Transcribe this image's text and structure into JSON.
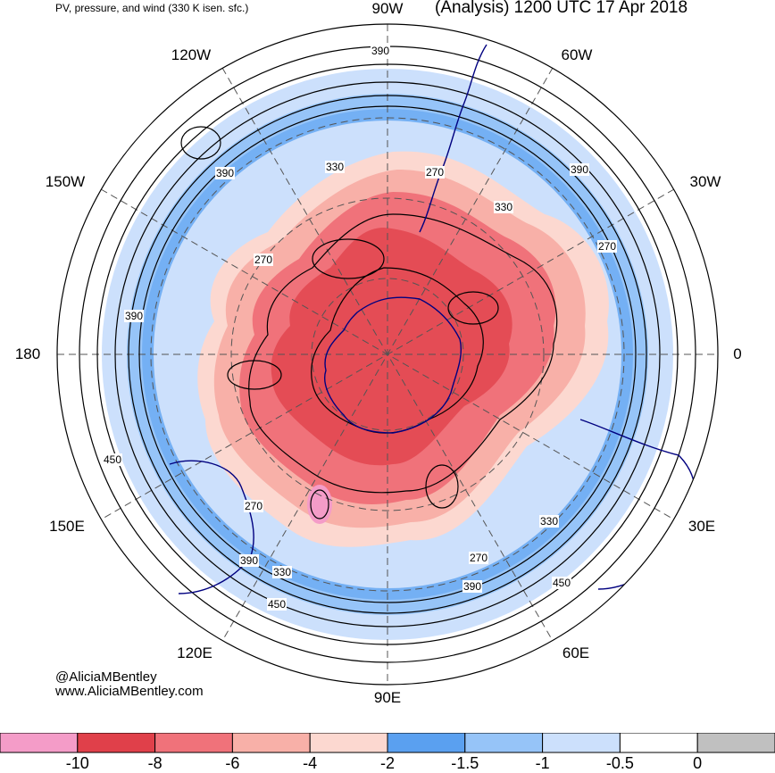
{
  "title_left": "PV, pressure, and wind (330 K isen. sfc.)",
  "title_right": "(Analysis) 1200 UTC 17 Apr 2018",
  "credits": [
    "@AliciaMBentley",
    "www.AliciaMBentley.com"
  ],
  "longitude_labels": {
    "lon_90w": "90W",
    "lon_60w": "60W",
    "lon_30w": "30W",
    "lon_0": "0",
    "lon_30e": "30E",
    "lon_60e": "60E",
    "lon_90e": "90E",
    "lon_120e": "120E",
    "lon_150e": "150E",
    "lon_180": "180",
    "lon_150w": "150W",
    "lon_120w": "120W"
  },
  "contour_labels": [
    "390",
    "390",
    "330",
    "270",
    "330",
    "390",
    "270",
    "270",
    "390",
    "450",
    "270",
    "390",
    "330",
    "450",
    "330",
    "270",
    "390",
    "450"
  ],
  "colorbar": {
    "colors": [
      "#f49cc8",
      "#e0404a",
      "#f0727a",
      "#f8b0a8",
      "#fcd8d0",
      "#5aa0f0",
      "#96c4f8",
      "#cce0fc",
      "#ffffff",
      "#c0c0c0"
    ],
    "ticks": [
      "-10",
      "-8",
      "-6",
      "-4",
      "-2",
      "-1.5",
      "-1",
      "-0.5",
      "0"
    ]
  },
  "colors": {
    "coastline": "#000080",
    "contour": "#000000",
    "graticule": "#555555"
  }
}
